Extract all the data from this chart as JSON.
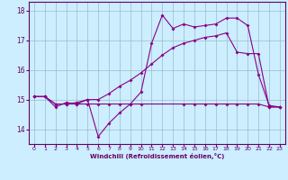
{
  "xlabel": "Windchill (Refroidissement éolien,°C)",
  "bg_color": "#cceeff",
  "grid_color": "#99bbcc",
  "line_color": "#880088",
  "xlim": [
    -0.5,
    23.5
  ],
  "ylim": [
    13.5,
    18.3
  ],
  "xticks": [
    0,
    1,
    2,
    3,
    4,
    5,
    6,
    7,
    8,
    9,
    10,
    11,
    12,
    13,
    14,
    15,
    16,
    17,
    18,
    19,
    20,
    21,
    22,
    23
  ],
  "yticks": [
    14,
    15,
    16,
    17,
    18
  ],
  "line1_x": [
    0,
    1,
    2,
    3,
    4,
    5,
    6,
    7,
    8,
    9,
    10,
    11,
    12,
    13,
    14,
    15,
    16,
    17,
    18,
    19,
    20,
    21,
    22,
    23
  ],
  "line1_y": [
    15.1,
    15.1,
    14.75,
    14.9,
    14.85,
    15.0,
    13.75,
    14.2,
    14.55,
    14.85,
    15.25,
    16.9,
    17.85,
    17.4,
    17.55,
    17.45,
    17.5,
    17.55,
    17.75,
    17.75,
    17.5,
    15.85,
    14.8,
    14.75
  ],
  "line2_x": [
    0,
    1,
    2,
    3,
    4,
    5,
    6,
    7,
    8,
    9,
    10,
    14,
    15,
    16,
    17,
    18,
    19,
    20,
    21,
    22,
    23
  ],
  "line2_y": [
    15.1,
    15.1,
    14.85,
    14.85,
    14.85,
    14.85,
    14.85,
    14.85,
    14.85,
    14.85,
    14.85,
    14.85,
    14.85,
    14.85,
    14.85,
    14.85,
    14.85,
    14.85,
    14.85,
    14.75,
    14.75
  ],
  "line3_x": [
    0,
    1,
    2,
    3,
    4,
    5,
    6,
    7,
    8,
    9,
    10,
    11,
    12,
    13,
    14,
    15,
    16,
    17,
    18,
    19,
    20,
    21,
    22,
    23
  ],
  "line3_y": [
    15.1,
    15.1,
    14.85,
    14.85,
    14.9,
    15.0,
    15.0,
    15.2,
    15.45,
    15.65,
    15.9,
    16.2,
    16.5,
    16.75,
    16.9,
    17.0,
    17.1,
    17.15,
    17.25,
    16.6,
    16.55,
    16.55,
    14.75,
    14.75
  ]
}
